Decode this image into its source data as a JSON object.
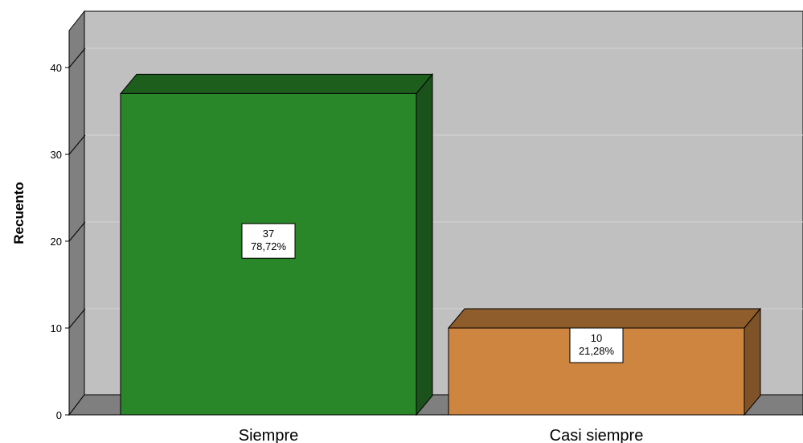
{
  "chart_data": {
    "type": "bar",
    "style": "3d",
    "ylabel": "Recuento",
    "xlabel": "",
    "ylim": [
      0,
      40
    ],
    "yticks": [
      "0",
      "10",
      "20",
      "30",
      "40"
    ],
    "categories": [
      "Siempre",
      "Casi siempre"
    ],
    "values": [
      37,
      10
    ],
    "percent_labels": [
      "78,72%",
      "21,28%"
    ],
    "grid": true,
    "colors": {
      "bars": [
        "#298629",
        "#CD853F"
      ],
      "bar_tops": [
        "#1D5E1D",
        "#8F5D2C"
      ],
      "bar_sides": [
        "#1B521B",
        "#7F5327"
      ],
      "wall": "#C0C0C0",
      "floor": "#7F7F7F",
      "left_wall": "#808080",
      "gridline": "#D3D3D3"
    }
  }
}
